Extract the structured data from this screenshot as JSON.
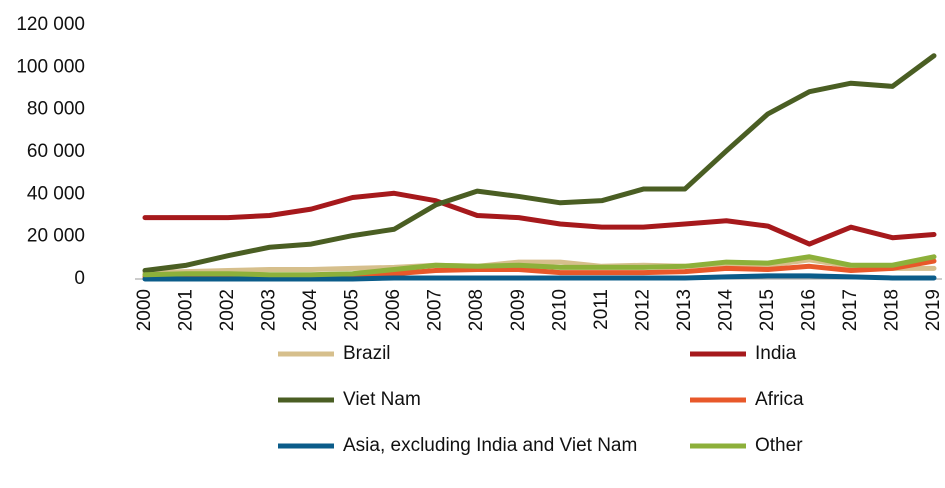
{
  "chart_data": {
    "type": "line",
    "categories": [
      "2000",
      "2001",
      "2002",
      "2003",
      "2004",
      "2005",
      "2006",
      "2007",
      "2008",
      "2009",
      "2010",
      "2011",
      "2012",
      "2013",
      "2014",
      "2015",
      "2016",
      "2017",
      "2018",
      "2019"
    ],
    "series": [
      {
        "name": "Brazil",
        "color": "#d6bf8c",
        "values": [
          3000,
          3500,
          4000,
          4500,
          4500,
          5000,
          5500,
          6500,
          6000,
          8000,
          8000,
          6000,
          6500,
          6000,
          7000,
          6500,
          9000,
          6000,
          5000,
          5000
        ]
      },
      {
        "name": "India",
        "color": "#a6191c",
        "values": [
          29000,
          29000,
          29000,
          30000,
          33000,
          38500,
          40500,
          37000,
          30000,
          29000,
          26000,
          24500,
          24500,
          26000,
          27500,
          25000,
          16500,
          24500,
          19500,
          21000
        ]
      },
      {
        "name": "Viet Nam",
        "color": "#4a5e23",
        "values": [
          4000,
          6500,
          11000,
          15000,
          16500,
          20500,
          23500,
          35000,
          41500,
          39000,
          36000,
          37000,
          42500,
          42500,
          60500,
          78000,
          88500,
          92500,
          91000,
          105500
        ]
      },
      {
        "name": "Africa",
        "color": "#e8582a",
        "values": [
          1000,
          1500,
          1500,
          1500,
          1500,
          2000,
          2500,
          4000,
          4500,
          4500,
          3000,
          3000,
          3000,
          3500,
          5000,
          4500,
          6000,
          4000,
          5000,
          8500
        ]
      },
      {
        "name": "Asia, excluding India and Viet Nam",
        "color": "#0b5c8a",
        "values": [
          0,
          0,
          0,
          0,
          0,
          0,
          500,
          500,
          500,
          500,
          500,
          500,
          500,
          500,
          1000,
          1500,
          1500,
          1000,
          500,
          500
        ]
      },
      {
        "name": "Other",
        "color": "#8db03a",
        "values": [
          2000,
          2500,
          2500,
          2000,
          2000,
          2500,
          4500,
          6500,
          6000,
          6500,
          5500,
          5500,
          5500,
          6000,
          8000,
          7500,
          10500,
          6500,
          6500,
          10500
        ]
      }
    ],
    "ylim": [
      0,
      120000
    ],
    "yticks": [
      0,
      {
        "value": 20000,
        "label": "20 000"
      },
      {
        "value": 40000,
        "label": "40 000"
      },
      {
        "value": 60000,
        "label": "60 000"
      },
      {
        "value": 80000,
        "label": "80 000"
      },
      {
        "value": 100000,
        "label": "100 000"
      },
      {
        "value": 120000,
        "label": "120 000"
      }
    ]
  }
}
